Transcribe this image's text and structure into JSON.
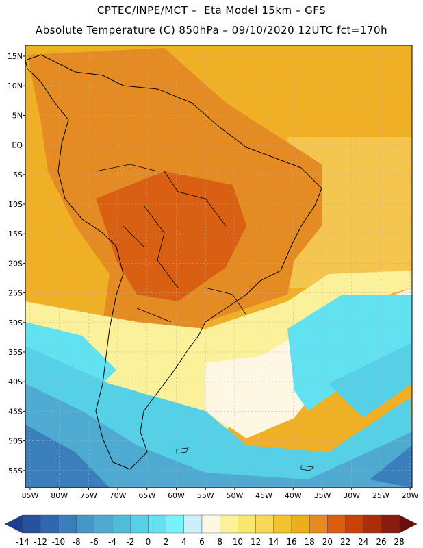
{
  "title_line1": "CPTEC/INPE/MCT –  Eta Model 15km – GFS",
  "title_line2": "Absolute Temperature (C) 850hPa – 09/10/2020 12UTC fct=170h",
  "lat_labels": [
    "15N",
    "10N",
    "5N",
    "EQ",
    "5S",
    "10S",
    "15S",
    "20S",
    "25S",
    "30S",
    "35S",
    "40S",
    "45S",
    "50S",
    "55S"
  ],
  "lon_labels": [
    "85W",
    "80W",
    "75W",
    "70W",
    "65W",
    "60W",
    "55W",
    "50W",
    "45W",
    "40W",
    "35W",
    "30W",
    "25W",
    "20W"
  ],
  "colorbar": {
    "labels": [
      "-14",
      "-12",
      "-10",
      "-8",
      "-6",
      "-4",
      "-2",
      "0",
      "2",
      "4",
      "6",
      "8",
      "10",
      "12",
      "14",
      "16",
      "18",
      "20",
      "22",
      "24",
      "26",
      "28"
    ],
    "colors": [
      "#1e3f8f",
      "#25519d",
      "#2f68ad",
      "#3a7fbb",
      "#4696c7",
      "#4eaad0",
      "#4fbcd8",
      "#56d0e6",
      "#62e2f1",
      "#74f3fb",
      "#cdeff9",
      "#fdf7e3",
      "#fbf19a",
      "#f9e670",
      "#f6d75a",
      "#f2c230",
      "#efac1c",
      "#e58b22",
      "#da5e10",
      "#c74108",
      "#ac2d0a",
      "#8a1c0f",
      "#6b0e0e"
    ]
  },
  "map_colors": {
    "ocean_north": "#f0b026",
    "ocean_mid": "#f4c955",
    "warm_land": "#e48b24",
    "hot_core": "#d95f12",
    "pale_band": "#fdf7e3",
    "light_band": "#fbf19a",
    "cyan": "#62e2f1",
    "light_blue": "#56d0e6",
    "mid_blue": "#4eaad0",
    "deep_blue": "#3a7fbb",
    "darkest_blue": "#2f68ad"
  }
}
